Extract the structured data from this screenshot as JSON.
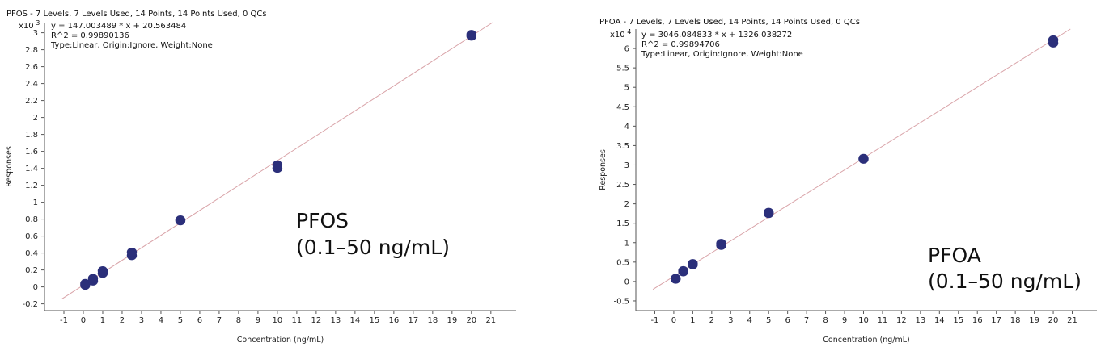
{
  "chart_data": [
    {
      "type": "scatter",
      "title": "PFOS - 7 Levels, 7 Levels Used, 14 Points, 14 Points Used, 0 QCs",
      "multiplier_label": "x10",
      "multiplier_exp": "3",
      "equation": "y = 147.003489 * x + 20.563484",
      "r2": "R^2 = 0.99890136",
      "fit_info": "Type:Linear, Origin:Ignore, Weight:None",
      "annotation_line1": "PFOS",
      "annotation_line2": "(0.1–50 ng/mL)",
      "xlabel": "Concentration (ng/mL)",
      "ylabel": "Responses",
      "xlim": [
        -2,
        22.3
      ],
      "ylim": [
        -0.28,
        3.12
      ],
      "x_ticks": [
        -1,
        0,
        1,
        2,
        3,
        4,
        5,
        6,
        7,
        8,
        9,
        10,
        11,
        12,
        13,
        14,
        15,
        16,
        17,
        18,
        19,
        20,
        21
      ],
      "y_ticks": [
        -0.2,
        0,
        0.2,
        0.4,
        0.6,
        0.8,
        1,
        1.2,
        1.4,
        1.6,
        1.8,
        2,
        2.2,
        2.4,
        2.6,
        2.8,
        3
      ],
      "fit": {
        "slope": 0.147003489,
        "intercept": 0.020563484
      },
      "points": [
        {
          "x": 0.1,
          "y": 0.02
        },
        {
          "x": 0.1,
          "y": 0.04
        },
        {
          "x": 0.5,
          "y": 0.07
        },
        {
          "x": 0.5,
          "y": 0.1
        },
        {
          "x": 1,
          "y": 0.16
        },
        {
          "x": 1,
          "y": 0.19
        },
        {
          "x": 2.5,
          "y": 0.37
        },
        {
          "x": 2.5,
          "y": 0.41
        },
        {
          "x": 5,
          "y": 0.78
        },
        {
          "x": 5,
          "y": 0.79
        },
        {
          "x": 10,
          "y": 1.4
        },
        {
          "x": 10,
          "y": 1.44
        },
        {
          "x": 20,
          "y": 2.96
        },
        {
          "x": 20,
          "y": 2.98
        }
      ],
      "line_color": "#d9a3a8",
      "point_color": "#2b2f7a"
    },
    {
      "type": "scatter",
      "title": "PFOA - 7 Levels, 7 Levels Used, 14 Points, 14 Points Used, 0 QCs",
      "multiplier_label": "x10",
      "multiplier_exp": "4",
      "equation": "y = 3046.084833 * x + 1326.038272",
      "r2": "R^2 = 0.99894706",
      "fit_info": "Type:Linear, Origin:Ignore, Weight:None",
      "annotation_line1": "PFOA",
      "annotation_line2": "(0.1–50 ng/mL)",
      "xlabel": "Concentration (ng/mL)",
      "ylabel": "Responses",
      "xlim": [
        -2,
        22.3
      ],
      "ylim": [
        -0.75,
        6.5
      ],
      "x_ticks": [
        -1,
        0,
        1,
        2,
        3,
        4,
        5,
        6,
        7,
        8,
        9,
        10,
        11,
        12,
        13,
        14,
        15,
        16,
        17,
        18,
        19,
        20,
        21
      ],
      "y_ticks": [
        -0.5,
        0,
        0.5,
        1,
        1.5,
        2,
        2.5,
        3,
        3.5,
        4,
        4.5,
        5,
        5.5,
        6
      ],
      "fit": {
        "slope": 0.3046084833,
        "intercept": 0.1326038272
      },
      "points": [
        {
          "x": 0.1,
          "y": 0.06
        },
        {
          "x": 0.1,
          "y": 0.08
        },
        {
          "x": 0.5,
          "y": 0.25
        },
        {
          "x": 0.5,
          "y": 0.28
        },
        {
          "x": 1,
          "y": 0.43
        },
        {
          "x": 1,
          "y": 0.46
        },
        {
          "x": 2.5,
          "y": 0.93
        },
        {
          "x": 2.5,
          "y": 0.98
        },
        {
          "x": 5,
          "y": 1.75
        },
        {
          "x": 5,
          "y": 1.78
        },
        {
          "x": 10,
          "y": 3.15
        },
        {
          "x": 10,
          "y": 3.17
        },
        {
          "x": 20,
          "y": 6.14
        },
        {
          "x": 20,
          "y": 6.22
        }
      ],
      "line_color": "#d9a3a8",
      "point_color": "#2b2f7a"
    }
  ]
}
